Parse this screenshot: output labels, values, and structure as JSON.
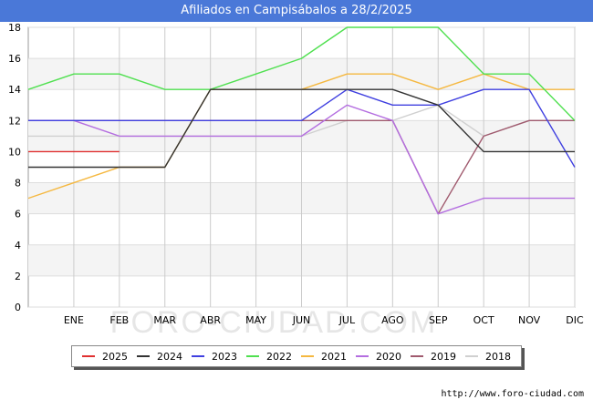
{
  "page": {
    "title": "Afiliados en Campisábalos a 28/2/2025",
    "footer_url": "http://www.foro-ciudad.com",
    "watermark": "FORO-CIUDAD.COM"
  },
  "chart_data": {
    "type": "line",
    "title": "Afiliados en Campisábalos a 28/2/2025",
    "x_labels": [
      "",
      "ENE",
      "FEB",
      "MAR",
      "ABR",
      "MAY",
      "JUN",
      "JUL",
      "AGO",
      "SEP",
      "OCT",
      "NOV",
      "DIC"
    ],
    "y_ticks": [
      0,
      2,
      4,
      6,
      8,
      10,
      12,
      14,
      16,
      18
    ],
    "ylim": [
      0,
      18
    ],
    "grid": true,
    "legend_position": "bottom",
    "series": [
      {
        "name": "2018",
        "color": "#d0d0d0",
        "values": [
          11,
          11,
          11,
          11,
          11,
          11,
          11,
          12,
          12,
          13,
          11,
          12,
          12
        ]
      },
      {
        "name": "2019",
        "color": "#a05a6e",
        "values": [
          12,
          12,
          12,
          12,
          12,
          12,
          12,
          12,
          12,
          6,
          11,
          12,
          12
        ]
      },
      {
        "name": "2020",
        "color": "#b46ee0",
        "values": [
          12,
          12,
          11,
          11,
          11,
          11,
          11,
          13,
          12,
          6,
          7,
          7,
          7
        ]
      },
      {
        "name": "2021",
        "color": "#f5b840",
        "values": [
          7,
          8,
          9,
          9,
          14,
          14,
          14,
          15,
          15,
          14,
          15,
          14,
          14
        ]
      },
      {
        "name": "2022",
        "color": "#50e050",
        "values": [
          14,
          15,
          15,
          14,
          14,
          15,
          16,
          18,
          18,
          18,
          15,
          15,
          12
        ]
      },
      {
        "name": "2023",
        "color": "#4040e0",
        "values": [
          12,
          12,
          12,
          12,
          12,
          12,
          12,
          14,
          13,
          13,
          14,
          14,
          9
        ]
      },
      {
        "name": "2024",
        "color": "#333333",
        "values": [
          9,
          9,
          9,
          9,
          14,
          14,
          14,
          14,
          14,
          13,
          10,
          10,
          10
        ]
      },
      {
        "name": "2025",
        "color": "#e03030",
        "values": [
          10,
          10,
          10
        ]
      }
    ],
    "legend_order": [
      "2025",
      "2024",
      "2023",
      "2022",
      "2021",
      "2020",
      "2019",
      "2018"
    ]
  }
}
